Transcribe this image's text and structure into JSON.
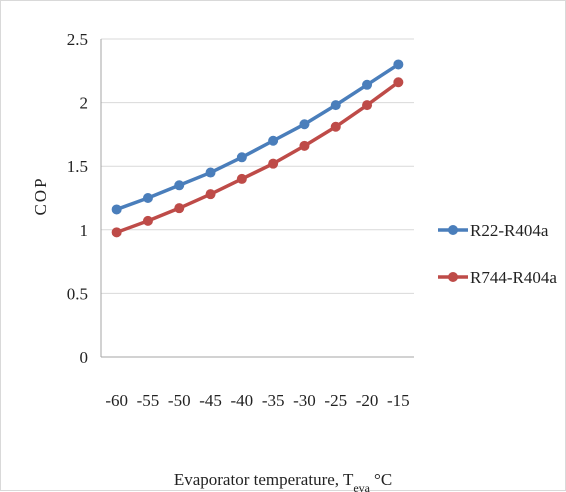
{
  "chart_data": {
    "type": "line",
    "title": "",
    "xlabel": "Evaporator temperature, T",
    "xlabel_subscript": "eva",
    "xlabel_unit": "°C",
    "ylabel": "COP",
    "x": [
      -60,
      -55,
      -50,
      -45,
      -40,
      -35,
      -30,
      -25,
      -20,
      -15
    ],
    "x_tick_labels": [
      "-60",
      "-55",
      "-50",
      "-45",
      "-40",
      "-35",
      "-30",
      "-25",
      "-20",
      "-15"
    ],
    "ylim": [
      0,
      2.5
    ],
    "y_ticks": [
      0,
      0.5,
      1,
      1.5,
      2,
      2.5
    ],
    "y_tick_labels": [
      "0",
      "0.5",
      "1",
      "1.5",
      "2",
      "2.5"
    ],
    "grid": "horizontal",
    "legend_position": "right",
    "series": [
      {
        "name": "R22-R404a",
        "color": "#4a7ebb",
        "values": [
          1.16,
          1.25,
          1.35,
          1.45,
          1.57,
          1.7,
          1.83,
          1.98,
          2.14,
          2.3
        ]
      },
      {
        "name": "R744-R404a",
        "color": "#be4b48",
        "values": [
          0.98,
          1.07,
          1.17,
          1.28,
          1.4,
          1.52,
          1.66,
          1.81,
          1.98,
          2.16
        ]
      }
    ]
  }
}
